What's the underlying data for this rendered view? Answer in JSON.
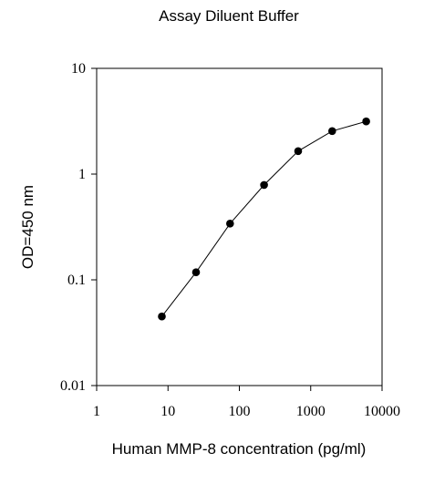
{
  "chart_data": {
    "type": "line",
    "title": "Assay Diluent Buffer",
    "xlabel": "Human MMP-8 concentration (pg/ml)",
    "ylabel": "OD=450 nm",
    "xscale": "log",
    "yscale": "log",
    "xlim": [
      1,
      10000
    ],
    "ylim": [
      0.01,
      10
    ],
    "xticks": [
      1,
      10,
      100,
      1000,
      10000
    ],
    "yticks": [
      0.01,
      0.1,
      1,
      10
    ],
    "xtick_labels": [
      "1",
      "10",
      "100",
      "1000",
      "10000"
    ],
    "ytick_labels": [
      "0.01",
      "0.1",
      "1",
      "10"
    ],
    "grid": false,
    "series": [
      {
        "x": [
          8.2,
          24.7,
          74.1,
          222,
          667,
          2000,
          6000
        ],
        "y": [
          0.045,
          0.118,
          0.34,
          0.79,
          1.65,
          2.55,
          3.15
        ]
      }
    ]
  }
}
